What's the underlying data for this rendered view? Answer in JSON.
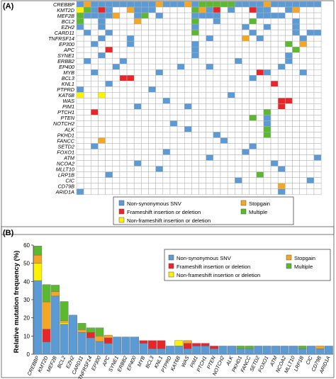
{
  "colors": {
    "nonsyn": "#5B9BD5",
    "frameshift": "#E8262A",
    "nonframeshift": "#FFF200",
    "stopgain": "#F5A623",
    "multiple": "#5CB82E",
    "empty": "#FFFFFF",
    "grid": "#AFAFAF"
  },
  "legend": [
    {
      "key": "nonsyn",
      "label": "Non-synonymous SNV"
    },
    {
      "key": "frameshift",
      "label": "Frameshift insertion or deletion"
    },
    {
      "key": "nonframeshift",
      "label": "Non-frameshift insertion or deletion"
    },
    {
      "key": "stopgain",
      "label": "Stopgain"
    },
    {
      "key": "multiple",
      "label": "Multiple"
    }
  ],
  "chart_data": [
    {
      "type": "heatmap",
      "panel_label": "(A)",
      "genes": [
        "CREBBP",
        "KMT2D",
        "MEF2B",
        "BCL2",
        "EZH2",
        "CARD11",
        "TNFRSF14",
        "EP300",
        "APC",
        "SYNE1",
        "ERBB2",
        "EP400",
        "MYB",
        "BCL3",
        "KNL1",
        "PTPRD",
        "KAT6B",
        "WAS",
        "PIM1",
        "PTCH1",
        "PTEN",
        "NOTCH2",
        "ALK",
        "PKHD1",
        "FANCC",
        "SETD2",
        "FOXO1",
        "ATM",
        "NCOA2",
        "MLLT10",
        "LRP1B",
        "CIC",
        "CD79B",
        "ARID1A"
      ],
      "n_samples": 34,
      "mutations": [
        [
          0,
          0,
          "nonsyn"
        ],
        [
          0,
          1,
          "stopgain"
        ],
        [
          0,
          2,
          "nonsyn"
        ],
        [
          0,
          3,
          "nonsyn"
        ],
        [
          0,
          4,
          "nonsyn"
        ],
        [
          0,
          5,
          "nonsyn"
        ],
        [
          0,
          6,
          "nonsyn"
        ],
        [
          0,
          7,
          "nonsyn"
        ],
        [
          0,
          8,
          "nonsyn"
        ],
        [
          0,
          9,
          "nonsyn"
        ],
        [
          0,
          10,
          "nonsyn"
        ],
        [
          0,
          11,
          "stopgain"
        ],
        [
          0,
          12,
          "nonsyn"
        ],
        [
          0,
          13,
          "nonsyn"
        ],
        [
          0,
          14,
          "nonsyn"
        ],
        [
          0,
          15,
          "stopgain"
        ],
        [
          0,
          16,
          "nonsyn"
        ],
        [
          0,
          17,
          "multiple"
        ],
        [
          0,
          18,
          "multiple"
        ],
        [
          0,
          19,
          "multiple"
        ],
        [
          0,
          20,
          "multiple"
        ],
        [
          0,
          21,
          "multiple"
        ],
        [
          0,
          22,
          "nonsyn"
        ],
        [
          0,
          23,
          "nonsyn"
        ],
        [
          0,
          24,
          "nonsyn"
        ],
        [
          0,
          25,
          "nonsyn"
        ],
        [
          0,
          26,
          "stopgain"
        ],
        [
          0,
          27,
          "nonsyn"
        ],
        [
          0,
          28,
          "nonsyn"
        ],
        [
          0,
          29,
          "nonsyn"
        ],
        [
          0,
          30,
          "nonsyn"
        ],
        [
          0,
          31,
          "nonsyn"
        ],
        [
          0,
          32,
          "nonsyn"
        ],
        [
          0,
          33,
          "nonsyn"
        ],
        [
          1,
          0,
          "nonframeshift"
        ],
        [
          1,
          1,
          "multiple"
        ],
        [
          1,
          2,
          "nonsyn"
        ],
        [
          1,
          3,
          "frameshift"
        ],
        [
          1,
          4,
          "nonsyn"
        ],
        [
          1,
          7,
          "stopgain"
        ],
        [
          1,
          8,
          "nonsyn"
        ],
        [
          1,
          9,
          "nonsyn"
        ],
        [
          1,
          10,
          "nonsyn"
        ],
        [
          1,
          16,
          "multiple"
        ],
        [
          1,
          17,
          "stopgain"
        ],
        [
          1,
          18,
          "nonsyn"
        ],
        [
          1,
          19,
          "frameshift"
        ],
        [
          1,
          21,
          "nonsyn"
        ],
        [
          1,
          24,
          "frameshift"
        ],
        [
          1,
          25,
          "nonsyn"
        ],
        [
          1,
          26,
          "nonsyn"
        ],
        [
          1,
          29,
          "nonsyn"
        ],
        [
          1,
          30,
          "stopgain"
        ],
        [
          2,
          0,
          "multiple"
        ],
        [
          2,
          1,
          "nonsyn"
        ],
        [
          2,
          2,
          "nonsyn"
        ],
        [
          2,
          3,
          "nonsyn"
        ],
        [
          2,
          4,
          "nonsyn"
        ],
        [
          2,
          5,
          "stopgain"
        ],
        [
          2,
          8,
          "nonsyn"
        ],
        [
          2,
          9,
          "multiple"
        ],
        [
          2,
          11,
          "nonsyn"
        ],
        [
          2,
          16,
          "nonsyn"
        ],
        [
          2,
          17,
          "nonsyn"
        ],
        [
          2,
          18,
          "nonsyn"
        ],
        [
          2,
          19,
          "nonsyn"
        ],
        [
          2,
          25,
          "nonsyn"
        ],
        [
          2,
          26,
          "nonsyn"
        ],
        [
          2,
          27,
          "nonsyn"
        ],
        [
          2,
          28,
          "nonsyn"
        ],
        [
          3,
          0,
          "multiple"
        ],
        [
          3,
          3,
          "nonsyn"
        ],
        [
          3,
          8,
          "stopgain"
        ],
        [
          3,
          16,
          "multiple"
        ],
        [
          3,
          19,
          "nonsyn"
        ],
        [
          3,
          24,
          "multiple"
        ],
        [
          3,
          30,
          "nonsyn"
        ],
        [
          4,
          0,
          "nonsyn"
        ],
        [
          4,
          3,
          "nonsyn"
        ],
        [
          4,
          16,
          "nonsyn"
        ],
        [
          4,
          23,
          "nonsyn"
        ],
        [
          4,
          26,
          "nonsyn"
        ],
        [
          4,
          30,
          "nonsyn"
        ],
        [
          5,
          1,
          "nonsyn"
        ],
        [
          5,
          4,
          "nonsyn"
        ],
        [
          5,
          16,
          "multiple"
        ],
        [
          5,
          24,
          "nonsyn"
        ],
        [
          5,
          30,
          "nonsyn"
        ],
        [
          5,
          32,
          "nonsyn"
        ],
        [
          5,
          33,
          "nonsyn"
        ],
        [
          6,
          3,
          "nonsyn"
        ],
        [
          6,
          7,
          "nonsyn"
        ],
        [
          6,
          18,
          "nonsyn"
        ],
        [
          6,
          23,
          "stopgain"
        ],
        [
          6,
          25,
          "nonsyn"
        ],
        [
          6,
          31,
          "nonsyn"
        ],
        [
          7,
          2,
          "nonsyn"
        ],
        [
          7,
          7,
          "nonsyn"
        ],
        [
          7,
          16,
          "nonsyn"
        ],
        [
          7,
          29,
          "multiple"
        ],
        [
          7,
          31,
          "stopgain"
        ],
        [
          8,
          4,
          "frameshift"
        ],
        [
          8,
          16,
          "nonsyn"
        ],
        [
          8,
          30,
          "multiple"
        ],
        [
          9,
          3,
          "nonsyn"
        ],
        [
          9,
          16,
          "nonsyn"
        ],
        [
          9,
          29,
          "nonsyn"
        ],
        [
          10,
          1,
          "nonsyn"
        ],
        [
          10,
          6,
          "nonsyn"
        ],
        [
          10,
          22,
          "nonsyn"
        ],
        [
          10,
          29,
          "nonsyn"
        ],
        [
          11,
          5,
          "nonsyn"
        ],
        [
          11,
          14,
          "nonsyn"
        ],
        [
          11,
          18,
          "nonsyn"
        ],
        [
          11,
          28,
          "nonsyn"
        ],
        [
          12,
          2,
          "nonsyn"
        ],
        [
          12,
          11,
          "nonsyn"
        ],
        [
          12,
          25,
          "frameshift"
        ],
        [
          12,
          26,
          "nonsyn"
        ],
        [
          12,
          31,
          "nonsyn"
        ],
        [
          13,
          6,
          "frameshift"
        ],
        [
          13,
          7,
          "frameshift"
        ],
        [
          13,
          24,
          "nonsyn"
        ],
        [
          14,
          4,
          "nonsyn"
        ],
        [
          14,
          27,
          "frameshift"
        ],
        [
          15,
          0,
          "nonsyn"
        ],
        [
          15,
          10,
          "nonsyn"
        ],
        [
          16,
          0,
          "nonframeshift"
        ],
        [
          16,
          3,
          "nonframeshift"
        ],
        [
          16,
          21,
          "nonsyn"
        ],
        [
          17,
          12,
          "nonsyn"
        ],
        [
          17,
          28,
          "frameshift"
        ],
        [
          17,
          29,
          "frameshift"
        ],
        [
          18,
          8,
          "nonsyn"
        ],
        [
          18,
          15,
          "nonsyn"
        ],
        [
          18,
          28,
          "frameshift"
        ],
        [
          19,
          2,
          "frameshift"
        ],
        [
          19,
          26,
          "multiple"
        ],
        [
          20,
          24,
          "multiple"
        ],
        [
          20,
          26,
          "nonsyn"
        ],
        [
          21,
          13,
          "nonsyn"
        ],
        [
          21,
          26,
          "nonsyn"
        ],
        [
          22,
          15,
          "nonsyn"
        ],
        [
          22,
          26,
          "multiple"
        ],
        [
          23,
          19,
          "nonsyn"
        ],
        [
          23,
          26,
          "multiple"
        ],
        [
          24,
          3,
          "stopgain"
        ],
        [
          24,
          20,
          "nonsyn"
        ],
        [
          25,
          2,
          "nonsyn"
        ],
        [
          25,
          24,
          "nonsyn"
        ],
        [
          26,
          12,
          "nonsyn"
        ],
        [
          26,
          23,
          "nonsyn"
        ],
        [
          27,
          18,
          "nonsyn"
        ],
        [
          27,
          33,
          "nonsyn"
        ],
        [
          28,
          8,
          "nonsyn"
        ],
        [
          28,
          27,
          "nonsyn"
        ],
        [
          29,
          11,
          "nonsyn"
        ],
        [
          29,
          28,
          "nonsyn"
        ],
        [
          30,
          4,
          "nonsyn"
        ],
        [
          30,
          25,
          "multiple"
        ],
        [
          31,
          22,
          "nonsyn"
        ],
        [
          31,
          32,
          "nonsyn"
        ],
        [
          32,
          28,
          "stopgain"
        ],
        [
          33,
          0,
          "nonsyn"
        ],
        [
          33,
          28,
          "nonsyn"
        ]
      ]
    },
    {
      "type": "bar",
      "stacked": true,
      "panel_label": "(B)",
      "ylabel": "Relative mutation frequency (%)",
      "ylim": [
        0,
        60
      ],
      "yticks": [
        0,
        10,
        20,
        30,
        40,
        50,
        60
      ],
      "categories": [
        "CREBBP",
        "KMT2D",
        "MEF2B",
        "BCL2",
        "EZH2",
        "CARD11",
        "TNFRSF14",
        "EP300",
        "APC",
        "SYNE1",
        "ERBB2",
        "EP400",
        "MYB",
        "BCL3",
        "KNL1",
        "PTPRD",
        "KAT6B",
        "WAS",
        "PIM1",
        "PTCH1",
        "PTEN",
        "NOTCH2",
        "ALK",
        "PKHD1",
        "FANCC",
        "SETD2",
        "FOXO1",
        "ATM",
        "NCOA2",
        "MLLT10",
        "LRP1B",
        "CIC",
        "CD79B",
        "ARID1A"
      ],
      "series": [
        {
          "name": "Non-synonymous SNV",
          "key": "nonsyn",
          "values": [
            40.5,
            6.8,
            32,
            16.5,
            21.5,
            12,
            9,
            7,
            6,
            9.5,
            9.5,
            9.5,
            6,
            3,
            3,
            4.5,
            4.5,
            3,
            4.5,
            4.5,
            3,
            4.5,
            4.5,
            3,
            3,
            4.5,
            4.5,
            4.5,
            4.5,
            4.5,
            3,
            4.5,
            3,
            4.5
          ]
        },
        {
          "name": "Frameshift insertion or deletion",
          "key": "frameshift",
          "values": [
            0,
            7,
            0,
            0,
            0,
            0,
            3,
            0,
            3,
            0,
            0,
            0,
            1.5,
            4.5,
            4.5,
            0,
            0,
            3,
            1.5,
            1.5,
            1.5,
            0,
            0,
            0,
            0,
            0,
            0,
            0,
            0,
            0,
            0,
            0,
            0,
            0
          ]
        },
        {
          "name": "Non-frameshift insertion or deletion",
          "key": "nonframeshift",
          "values": [
            9.5,
            0,
            0,
            1,
            0,
            0,
            0,
            0,
            0,
            0,
            0,
            0,
            0,
            0,
            0,
            0,
            3,
            0,
            0,
            0,
            0,
            0,
            0,
            0,
            0,
            0,
            0,
            0,
            0,
            0,
            0,
            0,
            0,
            0
          ]
        },
        {
          "name": "Stopgain",
          "key": "stopgain",
          "values": [
            4.5,
            15,
            2.5,
            1,
            0,
            1.5,
            0,
            3,
            1.5,
            0,
            0,
            0,
            0,
            0,
            0,
            0,
            0,
            1.5,
            0,
            0,
            0,
            0,
            0,
            0,
            0,
            0,
            0,
            0,
            0,
            0,
            0,
            0,
            1.5,
            0
          ]
        },
        {
          "name": "Multiple",
          "key": "multiple",
          "values": [
            5,
            9.5,
            3.5,
            10.5,
            0,
            3.5,
            2.5,
            4.5,
            0,
            0,
            0,
            0,
            0,
            0,
            0,
            0,
            0,
            0,
            0,
            0,
            0,
            0,
            0,
            1.5,
            1.5,
            0,
            0,
            0,
            0,
            0,
            1.5,
            0,
            0,
            0
          ]
        }
      ]
    }
  ]
}
